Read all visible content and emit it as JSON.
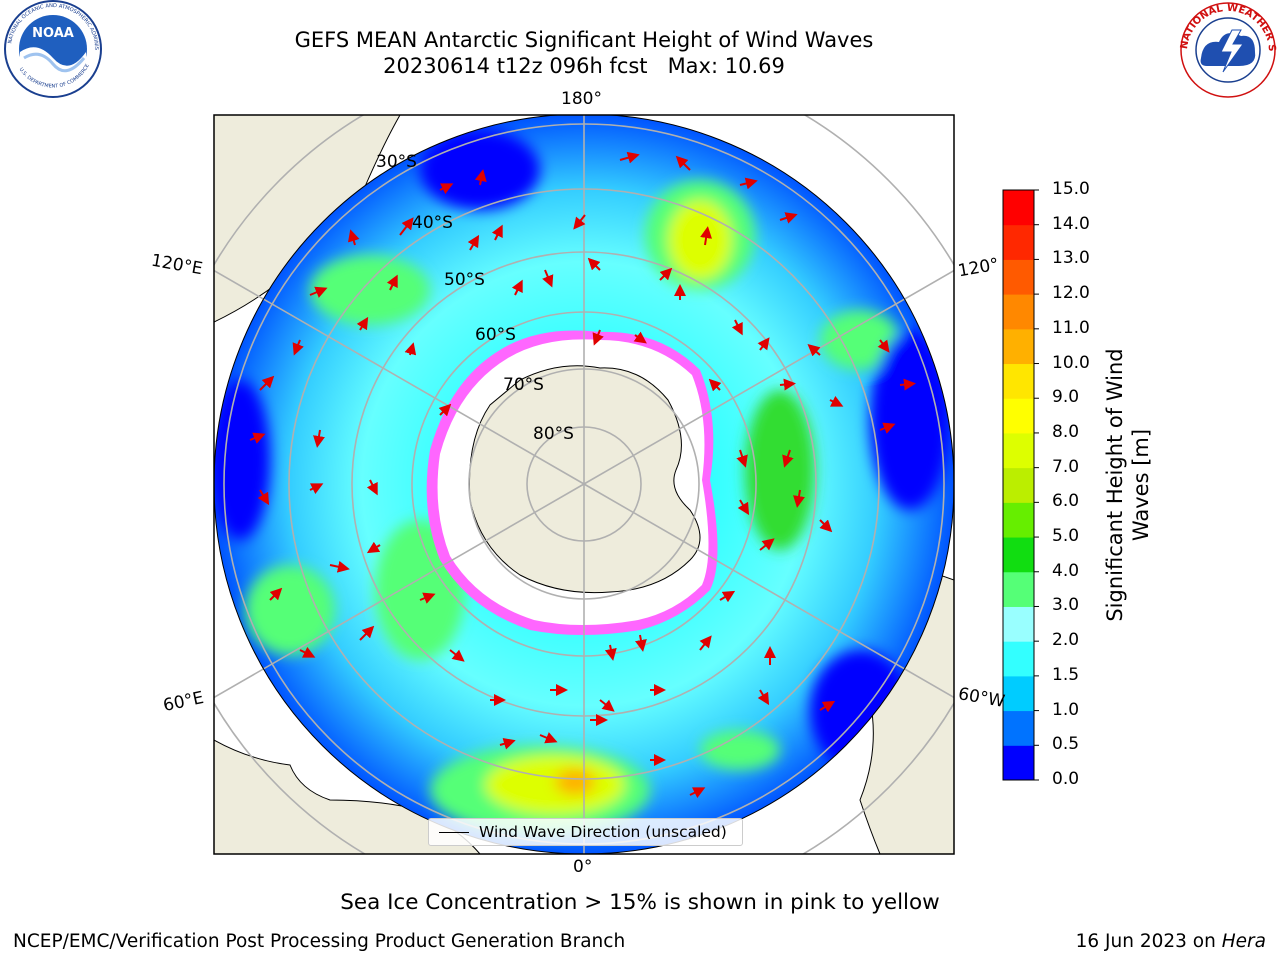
{
  "title": {
    "line1": "GEFS MEAN Antarctic Significant Height of Wind Waves",
    "line2": "20230614 t12z 096h fcst   Max: 10.69"
  },
  "map": {
    "projection": "south-polar-stereographic",
    "lon_labels": {
      "top": "180°",
      "bottom": "0°",
      "upper_left": "120°E",
      "lower_left": "60°E",
      "upper_right": "120°",
      "lower_right": "60°W"
    },
    "lat_labels": [
      "30°S",
      "40°S",
      "50°S",
      "60°S",
      "70°S",
      "80°S"
    ],
    "max_value": 10.69,
    "hotspots": [
      {
        "region": "south of Africa / South Atlantic",
        "height_m": 8.5
      },
      {
        "region": "South Pacific near 150°W",
        "height_m": 7.5
      },
      {
        "region": "Southern Ocean near 90°W",
        "height_m": 5.0
      },
      {
        "region": "Indian Ocean sector near 100°E",
        "height_m": 4.5
      }
    ]
  },
  "legend": {
    "label": "Wind Wave Direction (unscaled)"
  },
  "colorbar": {
    "title": "Significant Height of Wind Waves [m]",
    "ticks": [
      "0.0",
      "0.5",
      "1.0",
      "1.5",
      "2.0",
      "3.0",
      "4.0",
      "5.0",
      "6.0",
      "7.0",
      "8.0",
      "9.0",
      "10.0",
      "11.0",
      "12.0",
      "13.0",
      "14.0",
      "15.0"
    ],
    "colors": [
      "#0000ff",
      "#0073ff",
      "#00ccff",
      "#33ffff",
      "#99ffff",
      "#55ff77",
      "#11dd11",
      "#66ee00",
      "#bbee00",
      "#ddff00",
      "#ffff00",
      "#ffe600",
      "#ffb000",
      "#ff8800",
      "#ff5a00",
      "#ff2800",
      "#ff0000"
    ]
  },
  "caption": "Sea Ice Concentration > 15% is shown in pink to yellow",
  "footer": {
    "left": "NCEP/EMC/Verification Post Processing Product Generation Branch",
    "right_prefix": "16 Jun 2023 on ",
    "right_italic": "Hera"
  },
  "logos": {
    "noaa_text": "NOAA",
    "nws_text": "NATIONAL WEATHER SERVICE"
  }
}
